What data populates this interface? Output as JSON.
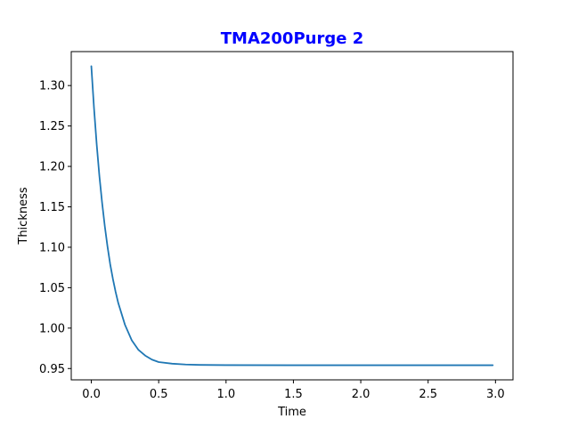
{
  "chart_data": {
    "type": "line",
    "title": "TMA200Purge 2",
    "xlabel": "Time",
    "ylabel": "Thickness",
    "xlim": [
      -0.149,
      3.13
    ],
    "ylim": [
      0.936,
      1.342
    ],
    "xticks": [
      0.0,
      0.5,
      1.0,
      1.5,
      2.0,
      2.5,
      3.0
    ],
    "xtick_labels": [
      "0.0",
      "0.5",
      "1.0",
      "1.5",
      "2.0",
      "2.5",
      "3.0"
    ],
    "yticks": [
      0.95,
      1.0,
      1.05,
      1.1,
      1.15,
      1.2,
      1.25,
      1.3
    ],
    "ytick_labels": [
      "0.95",
      "1.00",
      "1.05",
      "1.10",
      "1.15",
      "1.20",
      "1.25",
      "1.30"
    ],
    "grid": false,
    "series": [
      {
        "color": "#1f77b4",
        "x": [
          0.0,
          0.02,
          0.04,
          0.06,
          0.08,
          0.1,
          0.12,
          0.14,
          0.16,
          0.18,
          0.2,
          0.25,
          0.3,
          0.35,
          0.4,
          0.45,
          0.5,
          0.6,
          0.7,
          0.8,
          1.0,
          1.5,
          2.0,
          2.5,
          2.98
        ],
        "y": [
          1.324,
          1.272,
          1.227,
          1.188,
          1.155,
          1.126,
          1.101,
          1.079,
          1.061,
          1.045,
          1.031,
          1.004,
          0.985,
          0.973,
          0.966,
          0.961,
          0.958,
          0.956,
          0.955,
          0.9545,
          0.9542,
          0.9541,
          0.9541,
          0.9541,
          0.9541
        ]
      }
    ]
  },
  "colors": {
    "title": "#0000ff",
    "line": "#1f77b4"
  }
}
